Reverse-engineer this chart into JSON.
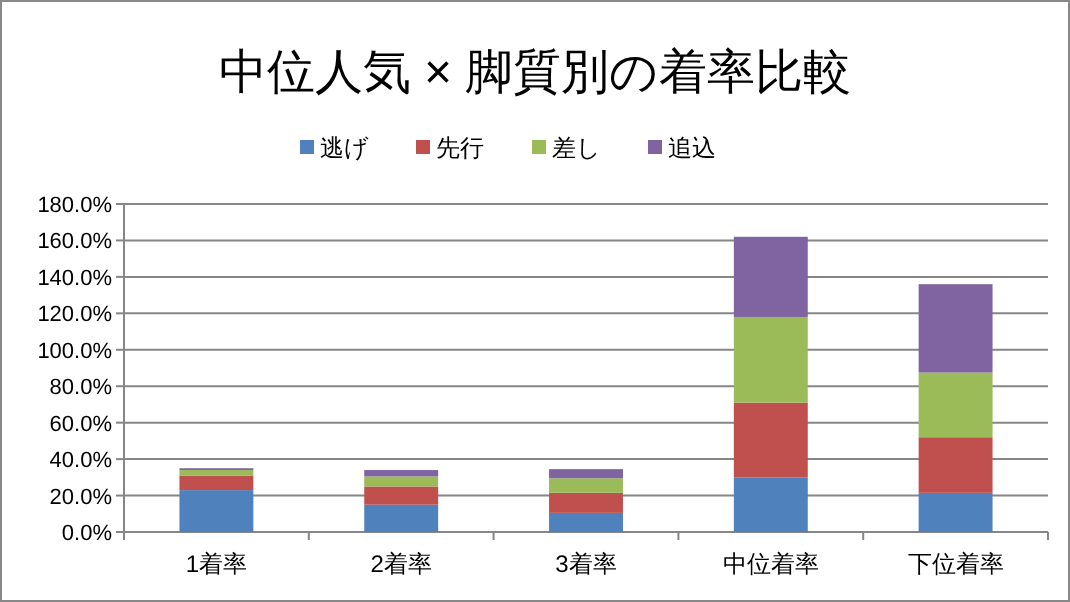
{
  "chart_data": {
    "type": "bar",
    "title": "中位人気 × 脚質別の着率比較",
    "stacked": true,
    "legend": "top",
    "grid": "y",
    "categories": [
      "1着率",
      "2着率",
      "3着率",
      "中位着率",
      "下位着率"
    ],
    "series": [
      {
        "name": "逃げ",
        "color": "#4f81bd",
        "values": [
          23,
          15,
          10.5,
          30,
          21.5
        ]
      },
      {
        "name": "先行",
        "color": "#c0504d",
        "values": [
          8,
          10,
          11,
          41,
          30.5
        ]
      },
      {
        "name": "差し",
        "color": "#9bbb59",
        "values": [
          3,
          5.5,
          8,
          47,
          35.5
        ]
      },
      {
        "name": "追込",
        "color": "#8064a2",
        "values": [
          1,
          3.5,
          5,
          44,
          48.5
        ]
      }
    ],
    "ylim": [
      0,
      180
    ],
    "yticks": [
      {
        "value": 0,
        "label": "0.0%"
      },
      {
        "value": 20,
        "label": "20.0%"
      },
      {
        "value": 40,
        "label": "40.0%"
      },
      {
        "value": 60,
        "label": "60.0%"
      },
      {
        "value": 80,
        "label": "80.0%"
      },
      {
        "value": 100,
        "label": "100.0%"
      },
      {
        "value": 120,
        "label": "120.0%"
      },
      {
        "value": 140,
        "label": "140.0%"
      },
      {
        "value": 160,
        "label": "160.0%"
      },
      {
        "value": 180,
        "label": "180.0%"
      }
    ]
  }
}
